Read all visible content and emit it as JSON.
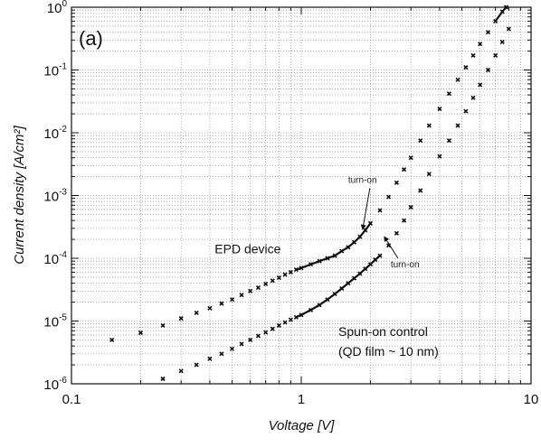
{
  "chart_data": {
    "type": "scatter",
    "panel_label": "(a)",
    "title": "",
    "xlabel": "Voltage [V]",
    "ylabel": "Current density [A/cm²]",
    "xscale": "log",
    "yscale": "log",
    "xlim": [
      0.1,
      10
    ],
    "ylim": [
      1e-06,
      1
    ],
    "grid": true,
    "x_ticks": [
      {
        "value": 0.1,
        "label": "0.1"
      },
      {
        "value": 1,
        "label": "1"
      },
      {
        "value": 10,
        "label": "10"
      }
    ],
    "y_ticks": [
      {
        "value": 1e-06,
        "base": "10",
        "exp": "-6"
      },
      {
        "value": 1e-05,
        "base": "10",
        "exp": "-5"
      },
      {
        "value": 0.0001,
        "base": "10",
        "exp": "-4"
      },
      {
        "value": 0.001,
        "base": "10",
        "exp": "-3"
      },
      {
        "value": 0.01,
        "base": "10",
        "exp": "-2"
      },
      {
        "value": 0.1,
        "base": "10",
        "exp": "-1"
      },
      {
        "value": 1,
        "base": "10",
        "exp": "0"
      }
    ],
    "series": [
      {
        "name": "EPD device",
        "color": "#111111",
        "x": [
          0.15,
          0.2,
          0.25,
          0.3,
          0.35,
          0.4,
          0.45,
          0.5,
          0.55,
          0.6,
          0.65,
          0.7,
          0.75,
          0.8,
          0.85,
          0.9,
          0.95,
          1.0,
          1.1,
          1.2,
          1.3,
          1.4,
          1.5,
          1.6,
          1.7,
          1.8,
          1.9,
          2.0,
          2.2,
          2.4,
          2.6,
          2.8,
          3.0,
          3.3,
          3.6,
          4.0,
          4.4,
          4.8,
          5.2,
          5.6,
          6.0,
          6.5,
          7.0,
          7.5,
          7.8
        ],
        "y": [
          5e-06,
          6.5e-06,
          8.5e-06,
          1.1e-05,
          1.35e-05,
          1.6e-05,
          1.9e-05,
          2.2e-05,
          2.6e-05,
          3e-05,
          3.4e-05,
          3.9e-05,
          4.4e-05,
          4.9e-05,
          5.5e-05,
          6e-05,
          6.6e-05,
          7e-05,
          8e-05,
          9e-05,
          0.0001,
          0.00011,
          0.00013,
          0.00015,
          0.00018,
          0.00022,
          0.00028,
          0.00036,
          0.00058,
          0.00095,
          0.0016,
          0.0026,
          0.004,
          0.0075,
          0.013,
          0.024,
          0.042,
          0.07,
          0.11,
          0.17,
          0.26,
          0.4,
          0.6,
          0.85,
          1.0
        ]
      },
      {
        "name": "Spun-on control",
        "color": "#111111",
        "x": [
          0.25,
          0.3,
          0.35,
          0.4,
          0.45,
          0.5,
          0.55,
          0.6,
          0.65,
          0.7,
          0.75,
          0.8,
          0.85,
          0.9,
          0.95,
          1.0,
          1.1,
          1.2,
          1.3,
          1.4,
          1.5,
          1.6,
          1.7,
          1.8,
          1.9,
          2.0,
          2.1,
          2.2,
          2.4,
          2.6,
          2.8,
          3.0,
          3.3,
          3.6,
          4.0,
          4.4,
          4.8,
          5.2,
          5.6,
          6.0,
          6.5,
          7.0,
          7.5,
          8.0
        ],
        "y": [
          1.2e-06,
          1.6e-06,
          2e-06,
          2.5e-06,
          3e-06,
          3.6e-06,
          4.3e-06,
          5e-06,
          5.8e-06,
          6.6e-06,
          7.5e-06,
          8.5e-06,
          9.5e-06,
          1.05e-05,
          1.15e-05,
          1.25e-05,
          1.5e-05,
          1.8e-05,
          2.2e-05,
          2.7e-05,
          3.3e-05,
          4e-05,
          4.8e-05,
          5.7e-05,
          6.8e-05,
          8e-05,
          9.5e-05,
          0.00011,
          0.00016,
          0.00025,
          0.0004,
          0.00065,
          0.0012,
          0.0022,
          0.0042,
          0.0075,
          0.013,
          0.022,
          0.036,
          0.058,
          0.1,
          0.17,
          0.28,
          0.45
        ]
      }
    ],
    "annotations": [
      {
        "key": "epd_label",
        "text": "EPD device",
        "x": 0.42,
        "y": 0.00012
      },
      {
        "key": "control_label",
        "text": "Spun-on control",
        "x": 1.45,
        "y": 5.8e-06
      },
      {
        "key": "control_sublabel",
        "text": "(QD film ~ 10 nm)",
        "x": 1.45,
        "y": 2.8e-06
      },
      {
        "key": "turn_on_1",
        "text": "turn-on",
        "x": 1.6,
        "y": 0.0016,
        "arrow_to": {
          "x": 1.85,
          "y": 0.00029
        }
      },
      {
        "key": "turn_on_2",
        "text": "turn-on",
        "x": 2.45,
        "y": 7.2e-05,
        "arrow_to": {
          "x": 2.3,
          "y": 0.00022
        }
      }
    ]
  }
}
